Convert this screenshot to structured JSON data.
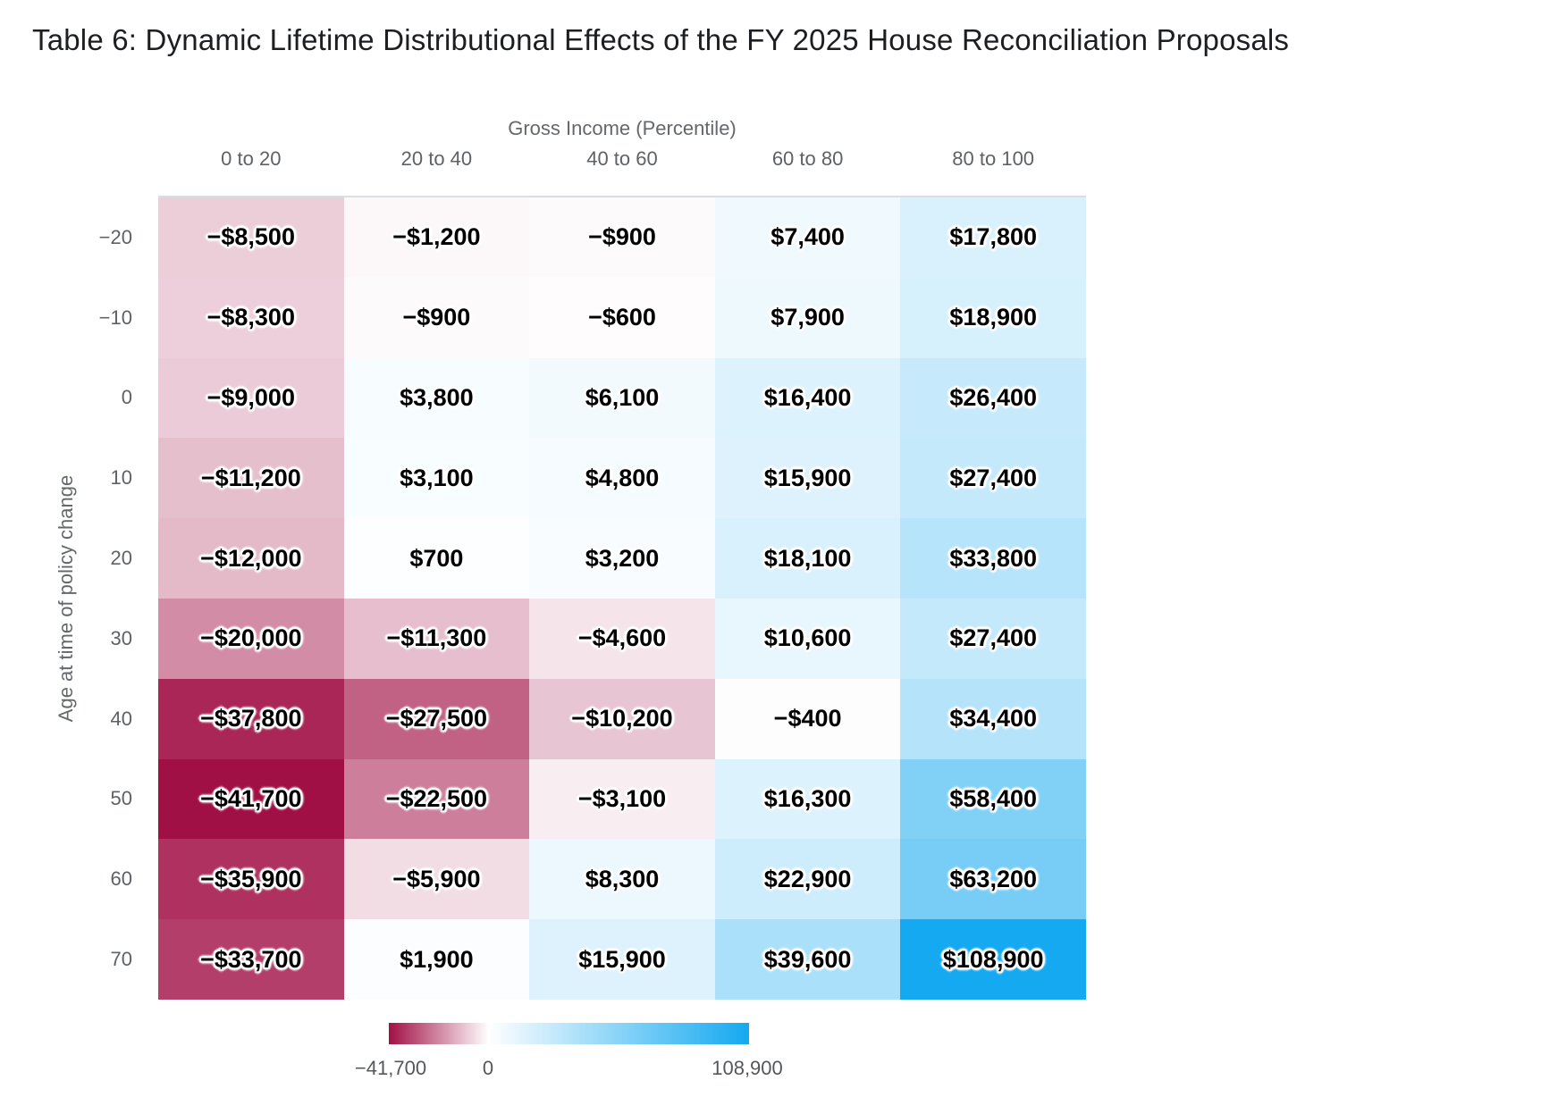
{
  "title": "Table 6: Dynamic Lifetime Distributional Effects of the FY 2025 House Reconciliation Proposals",
  "chart_data": {
    "type": "heatmap",
    "title": "Table 6: Dynamic Lifetime Distributional Effects of the FY 2025 House Reconciliation Proposals",
    "xlabel": "Gross Income (Percentile)",
    "ylabel": "Age at time of policy change",
    "columns": [
      "0 to 20",
      "20 to 40",
      "40 to 60",
      "60 to 80",
      "80 to 100"
    ],
    "rows": [
      "−20",
      "−10",
      "0",
      "10",
      "20",
      "30",
      "40",
      "50",
      "60",
      "70"
    ],
    "values": [
      [
        -8500,
        -1200,
        -900,
        7400,
        17800
      ],
      [
        -8300,
        -900,
        -600,
        7900,
        18900
      ],
      [
        -9000,
        3800,
        6100,
        16400,
        26400
      ],
      [
        -11200,
        3100,
        4800,
        15900,
        27400
      ],
      [
        -12000,
        700,
        3200,
        18100,
        33800
      ],
      [
        -20000,
        -11300,
        -4600,
        10600,
        27400
      ],
      [
        -37800,
        -27500,
        -10200,
        -400,
        34400
      ],
      [
        -41700,
        -22500,
        -3100,
        16300,
        58400
      ],
      [
        -35900,
        -5900,
        8300,
        22900,
        63200
      ],
      [
        -33700,
        1900,
        15900,
        39600,
        108900
      ]
    ],
    "labels": [
      [
        "−$8,500",
        "−$1,200",
        "−$900",
        "$7,400",
        "$17,800"
      ],
      [
        "−$8,300",
        "−$900",
        "−$600",
        "$7,900",
        "$18,900"
      ],
      [
        "−$9,000",
        "$3,800",
        "$6,100",
        "$16,400",
        "$26,400"
      ],
      [
        "−$11,200",
        "$3,100",
        "$4,800",
        "$15,900",
        "$27,400"
      ],
      [
        "−$12,000",
        "$700",
        "$3,200",
        "$18,100",
        "$33,800"
      ],
      [
        "−$20,000",
        "−$11,300",
        "−$4,600",
        "$10,600",
        "$27,400"
      ],
      [
        "−$37,800",
        "−$27,500",
        "−$10,200",
        "−$400",
        "$34,400"
      ],
      [
        "−$41,700",
        "−$22,500",
        "−$3,100",
        "$16,300",
        "$58,400"
      ],
      [
        "−$35,900",
        "−$5,900",
        "$8,300",
        "$22,900",
        "$63,200"
      ],
      [
        "−$33,700",
        "$1,900",
        "$15,900",
        "$39,600",
        "$108,900"
      ]
    ],
    "colorscale": {
      "min": -41700,
      "mid": 0,
      "max": 108900,
      "min_color": "#a11045",
      "mid_color": "#ffffff",
      "max_color": "#14a9f0"
    },
    "legend": {
      "min_label": "−41,700",
      "mid_label": "0",
      "max_label": "108,900"
    },
    "layout_hints": {
      "grid": false,
      "legend_position": "bottom",
      "value_text": "black bold with white halo",
      "axis_text_color": "#5e6265"
    }
  }
}
